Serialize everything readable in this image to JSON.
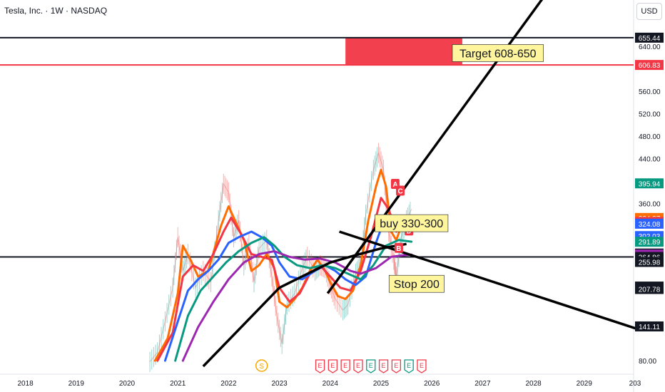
{
  "header": {
    "title": "Tesla, Inc. · 1W · NASDAQ",
    "currency": "USD"
  },
  "chart_data": {
    "type": "line",
    "x_ticks": [
      "2018",
      "2019",
      "2020",
      "2021",
      "2022",
      "2023",
      "2024",
      "2025",
      "2026",
      "2027",
      "2028",
      "2029",
      "203"
    ],
    "y_ticks": [
      {
        "value": 80,
        "label": "80.00"
      },
      {
        "value": 360,
        "label": "360.00"
      },
      {
        "value": 440,
        "label": "440.00"
      },
      {
        "value": 480,
        "label": "480.00"
      },
      {
        "value": 520,
        "label": "520.00"
      },
      {
        "value": 560,
        "label": "560.00"
      },
      {
        "value": 640,
        "label": "640.00"
      }
    ],
    "ylim": [
      70,
      720
    ],
    "xlim": [
      2017.5,
      2030.1
    ],
    "scale": "linear",
    "grid": false,
    "price_labels": [
      {
        "value": 655.44,
        "label": "655.44",
        "color": "#131722"
      },
      {
        "value": 606.83,
        "label": "606.83",
        "color": "#f23645"
      },
      {
        "value": 395.94,
        "label": "395.94",
        "color": "#089981"
      },
      {
        "value": 334.27,
        "label": "334.27",
        "color": "#ff6d00"
      },
      {
        "value": 327.28,
        "label": "327.28",
        "color": "#f23645"
      },
      {
        "value": 324.08,
        "label": "324.08",
        "color": "#2962ff"
      },
      {
        "value": 302.03,
        "label": "302.03",
        "color": "#2962ff"
      },
      {
        "value": 291.89,
        "label": "291.89",
        "color": "#089981"
      },
      {
        "value": 271.0,
        "label": "271.00",
        "color": "#131722"
      },
      {
        "value": 269.06,
        "label": "269.06",
        "color": "#9c27b0"
      },
      {
        "value": 264.86,
        "label": "264.86",
        "color": "#131722"
      },
      {
        "value": 255.98,
        "label": "255.98",
        "color": "#131722"
      },
      {
        "value": 212.11,
        "label": "212.11",
        "color": "#131722"
      },
      {
        "value": 207.78,
        "label": "207.78",
        "color": "#131722"
      },
      {
        "value": 141.11,
        "label": "141.11",
        "color": "#131722"
      }
    ],
    "hlines": [
      {
        "value": 655.44,
        "color": "#131722"
      },
      {
        "value": 606.83,
        "color": "#f23645"
      },
      {
        "value": 264.86,
        "color": "#131722"
      }
    ],
    "target_zone": {
      "x0": 2024.3,
      "x1": 2026.6,
      "y0": 606.83,
      "y1": 655.44,
      "color": "#f23645"
    },
    "annotations": [
      {
        "text": "Target 608-650",
        "x": 2027.3,
        "y": 628
      },
      {
        "text": "buy 330-300",
        "x": 2025.6,
        "y": 325
      },
      {
        "text": "Stop 200",
        "x": 2025.7,
        "y": 217
      }
    ],
    "trendlines": [
      {
        "name": "",
        "points": [
          [
            2023.95,
            200
          ],
          [
            2028.3,
            740
          ]
        ]
      },
      {
        "name": "",
        "points": [
          [
            2024.18,
            310
          ],
          [
            2030.1,
            135
          ]
        ]
      },
      {
        "name": "",
        "points": [
          [
            2021.5,
            70
          ],
          [
            2023.0,
            210
          ],
          [
            2024.0,
            255
          ],
          [
            2024.5,
            268
          ],
          [
            2025.0,
            280
          ],
          [
            2025.5,
            288
          ]
        ]
      }
    ],
    "series": [
      {
        "color": "#ff6d00",
        "points": [
          [
            2020.55,
            80
          ],
          [
            2020.8,
            120
          ],
          [
            2021.0,
            200
          ],
          [
            2021.1,
            285
          ],
          [
            2021.25,
            260
          ],
          [
            2021.4,
            230
          ],
          [
            2021.6,
            240
          ],
          [
            2021.85,
            320
          ],
          [
            2022.0,
            355
          ],
          [
            2022.15,
            325
          ],
          [
            2022.3,
            295
          ],
          [
            2022.45,
            240
          ],
          [
            2022.6,
            250
          ],
          [
            2022.75,
            270
          ],
          [
            2022.9,
            245
          ],
          [
            2023.0,
            185
          ],
          [
            2023.15,
            175
          ],
          [
            2023.3,
            190
          ],
          [
            2023.45,
            210
          ],
          [
            2023.6,
            240
          ],
          [
            2023.75,
            260
          ],
          [
            2023.9,
            240
          ],
          [
            2024.0,
            220
          ],
          [
            2024.15,
            195
          ],
          [
            2024.3,
            190
          ],
          [
            2024.45,
            205
          ],
          [
            2024.6,
            250
          ],
          [
            2024.75,
            330
          ],
          [
            2024.9,
            390
          ],
          [
            2025.0,
            420
          ],
          [
            2025.1,
            390
          ],
          [
            2025.2,
            310
          ],
          [
            2025.3,
            295
          ],
          [
            2025.4,
            320
          ],
          [
            2025.5,
            335
          ],
          [
            2025.6,
            334
          ]
        ]
      },
      {
        "color": "#f23645",
        "points": [
          [
            2020.6,
            80
          ],
          [
            2020.9,
            130
          ],
          [
            2021.1,
            230
          ],
          [
            2021.3,
            250
          ],
          [
            2021.5,
            240
          ],
          [
            2021.7,
            270
          ],
          [
            2021.9,
            310
          ],
          [
            2022.05,
            335
          ],
          [
            2022.25,
            305
          ],
          [
            2022.45,
            270
          ],
          [
            2022.65,
            265
          ],
          [
            2022.85,
            260
          ],
          [
            2023.0,
            210
          ],
          [
            2023.2,
            185
          ],
          [
            2023.4,
            200
          ],
          [
            2023.6,
            235
          ],
          [
            2023.8,
            250
          ],
          [
            2024.0,
            230
          ],
          [
            2024.2,
            210
          ],
          [
            2024.4,
            205
          ],
          [
            2024.6,
            240
          ],
          [
            2024.8,
            300
          ],
          [
            2025.0,
            370
          ],
          [
            2025.15,
            350
          ],
          [
            2025.3,
            310
          ],
          [
            2025.45,
            320
          ],
          [
            2025.6,
            327
          ]
        ]
      },
      {
        "color": "#2962ff",
        "points": [
          [
            2020.75,
            80
          ],
          [
            2021.0,
            150
          ],
          [
            2021.2,
            205
          ],
          [
            2021.4,
            225
          ],
          [
            2021.6,
            240
          ],
          [
            2021.8,
            260
          ],
          [
            2022.0,
            290
          ],
          [
            2022.2,
            300
          ],
          [
            2022.45,
            310
          ],
          [
            2022.65,
            300
          ],
          [
            2022.85,
            285
          ],
          [
            2023.0,
            255
          ],
          [
            2023.2,
            230
          ],
          [
            2023.45,
            225
          ],
          [
            2023.7,
            240
          ],
          [
            2023.9,
            250
          ],
          [
            2024.1,
            240
          ],
          [
            2024.3,
            225
          ],
          [
            2024.5,
            215
          ],
          [
            2024.7,
            230
          ],
          [
            2024.9,
            290
          ],
          [
            2025.1,
            340
          ],
          [
            2025.3,
            320
          ],
          [
            2025.6,
            324
          ]
        ]
      },
      {
        "color": "#089981",
        "points": [
          [
            2020.95,
            80
          ],
          [
            2021.2,
            160
          ],
          [
            2021.45,
            205
          ],
          [
            2021.7,
            230
          ],
          [
            2021.95,
            255
          ],
          [
            2022.2,
            275
          ],
          [
            2022.45,
            290
          ],
          [
            2022.7,
            300
          ],
          [
            2022.9,
            285
          ],
          [
            2023.1,
            265
          ],
          [
            2023.35,
            250
          ],
          [
            2023.6,
            245
          ],
          [
            2023.85,
            250
          ],
          [
            2024.1,
            245
          ],
          [
            2024.35,
            235
          ],
          [
            2024.6,
            225
          ],
          [
            2024.85,
            250
          ],
          [
            2025.1,
            285
          ],
          [
            2025.35,
            295
          ],
          [
            2025.6,
            292
          ]
        ]
      },
      {
        "color": "#9c27b0",
        "points": [
          [
            2021.1,
            80
          ],
          [
            2021.4,
            140
          ],
          [
            2021.7,
            185
          ],
          [
            2022.0,
            225
          ],
          [
            2022.3,
            255
          ],
          [
            2022.6,
            270
          ],
          [
            2022.9,
            275
          ],
          [
            2023.2,
            265
          ],
          [
            2023.5,
            260
          ],
          [
            2023.8,
            262
          ],
          [
            2024.1,
            255
          ],
          [
            2024.4,
            240
          ],
          [
            2024.6,
            235
          ],
          [
            2024.9,
            245
          ],
          [
            2025.2,
            265
          ],
          [
            2025.45,
            268
          ],
          [
            2025.6,
            269
          ]
        ]
      }
    ]
  },
  "price_path": [
    [
      2020.45,
      78
    ],
    [
      2020.6,
      95
    ],
    [
      2020.75,
      150
    ],
    [
      2020.9,
      210
    ],
    [
      2021.0,
      300
    ],
    [
      2021.1,
      240
    ],
    [
      2021.2,
      270
    ],
    [
      2021.35,
      210
    ],
    [
      2021.5,
      240
    ],
    [
      2021.65,
      220
    ],
    [
      2021.8,
      330
    ],
    [
      2021.9,
      395
    ],
    [
      2022.0,
      380
    ],
    [
      2022.1,
      300
    ],
    [
      2022.2,
      330
    ],
    [
      2022.3,
      250
    ],
    [
      2022.4,
      290
    ],
    [
      2022.5,
      220
    ],
    [
      2022.6,
      280
    ],
    [
      2022.75,
      295
    ],
    [
      2022.85,
      230
    ],
    [
      2022.95,
      160
    ],
    [
      2023.05,
      110
    ],
    [
      2023.15,
      180
    ],
    [
      2023.3,
      200
    ],
    [
      2023.45,
      245
    ],
    [
      2023.55,
      265
    ],
    [
      2023.7,
      240
    ],
    [
      2023.8,
      250
    ],
    [
      2023.9,
      245
    ],
    [
      2024.0,
      215
    ],
    [
      2024.1,
      190
    ],
    [
      2024.25,
      170
    ],
    [
      2024.35,
      180
    ],
    [
      2024.5,
      235
    ],
    [
      2024.6,
      250
    ],
    [
      2024.7,
      340
    ],
    [
      2024.85,
      420
    ],
    [
      2024.95,
      450
    ],
    [
      2025.05,
      420
    ],
    [
      2025.15,
      310
    ],
    [
      2025.25,
      260
    ],
    [
      2025.3,
      230
    ],
    [
      2025.4,
      300
    ],
    [
      2025.5,
      330
    ],
    [
      2025.6,
      350
    ]
  ],
  "bottom_badges": [
    {
      "letter": "S",
      "x": 2022.65,
      "color": "#f7a600",
      "style": "circle"
    },
    {
      "letter": "E",
      "x": 2023.8,
      "color": "#f23645",
      "style": "tag"
    },
    {
      "letter": "E",
      "x": 2024.05,
      "color": "#f23645",
      "style": "tag"
    },
    {
      "letter": "E",
      "x": 2024.3,
      "color": "#f23645",
      "style": "tag"
    },
    {
      "letter": "E",
      "x": 2024.55,
      "color": "#f23645",
      "style": "tag"
    },
    {
      "letter": "E",
      "x": 2024.8,
      "color": "#089981",
      "style": "tag"
    },
    {
      "letter": "E",
      "x": 2025.05,
      "color": "#f23645",
      "style": "tag"
    },
    {
      "letter": "E",
      "x": 2025.3,
      "color": "#f23645",
      "style": "tag"
    },
    {
      "letter": "E",
      "x": 2025.55,
      "color": "#089981",
      "style": "tag"
    },
    {
      "letter": "E",
      "x": 2025.8,
      "color": "#f23645",
      "style": "tag"
    }
  ],
  "markers": [
    {
      "letter": "A",
      "x": 2025.28,
      "y": 395,
      "color": "#f23645"
    },
    {
      "letter": "C",
      "x": 2025.38,
      "y": 383,
      "color": "#f23645"
    },
    {
      "letter": "D",
      "x": 2025.55,
      "y": 312,
      "color": "#f23645"
    },
    {
      "letter": "B",
      "x": 2025.35,
      "y": 281,
      "color": "#f23645"
    }
  ]
}
